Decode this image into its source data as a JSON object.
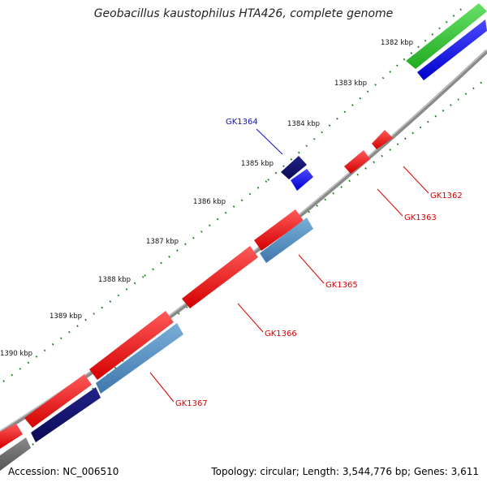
{
  "header": {
    "title": "Geobacillus kaustophilus HTA426, complete genome"
  },
  "footer": {
    "accession": "Accession: NC_006510",
    "summary": "Topology: circular; Length: 3,544,776 bp; Genes: 3,611"
  },
  "colors": {
    "backbone": "#8a8a8a",
    "tick": "#1f7a1f",
    "forward_gene": "#ee1111",
    "reverse_gene": "#1111ee",
    "label_red": "#dd0000",
    "label_blue": "#1111cc"
  },
  "scale": {
    "ticks": [
      "1382 kbp",
      "1383 kbp",
      "1384 kbp",
      "1385 kbp",
      "1386 kbp",
      "1387 kbp",
      "1388 kbp",
      "1389 kbp",
      "1390 kbp"
    ]
  },
  "genes": [
    {
      "name": "GK1362",
      "label_color": "red"
    },
    {
      "name": "GK1363",
      "label_color": "red"
    },
    {
      "name": "GK1364",
      "label_color": "blue"
    },
    {
      "name": "GK1365",
      "label_color": "red"
    },
    {
      "name": "GK1366",
      "label_color": "red"
    },
    {
      "name": "GK1367",
      "label_color": "red"
    }
  ]
}
